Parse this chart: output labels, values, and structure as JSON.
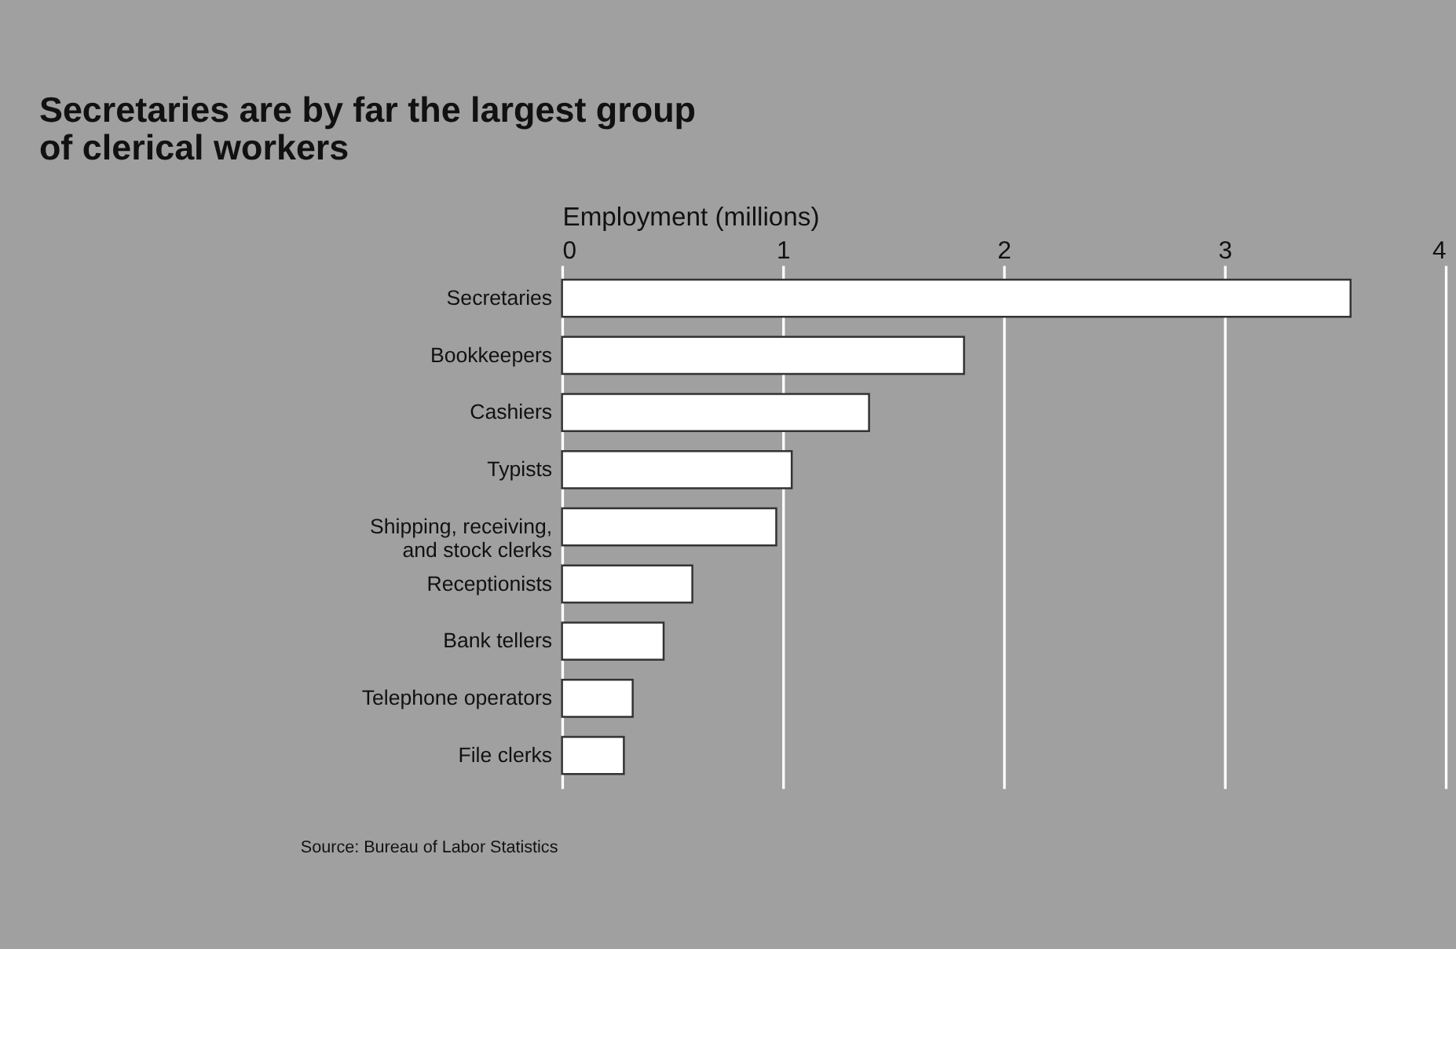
{
  "chart_data": {
    "type": "bar",
    "orientation": "horizontal",
    "title": [
      "Secretaries are by far the largest group",
      "of clerical workers"
    ],
    "xlabel": "Employment (millions)",
    "categories": [
      "Secretaries",
      "Bookkeepers",
      "Cashiers",
      "Typists",
      "Shipping, receiving,\nand stock clerks",
      "Receptionists",
      "Bank tellers",
      "Telephone operators",
      "File clerks"
    ],
    "values": [
      3.57,
      1.82,
      1.39,
      1.04,
      0.97,
      0.59,
      0.46,
      0.32,
      0.28
    ],
    "color": "#ffffff",
    "xlim": [
      0,
      4
    ],
    "xticks": [
      0,
      1,
      2,
      3,
      4
    ],
    "grid": "x",
    "annotations": [
      "Source: Bureau of Labor Statistics"
    ]
  }
}
